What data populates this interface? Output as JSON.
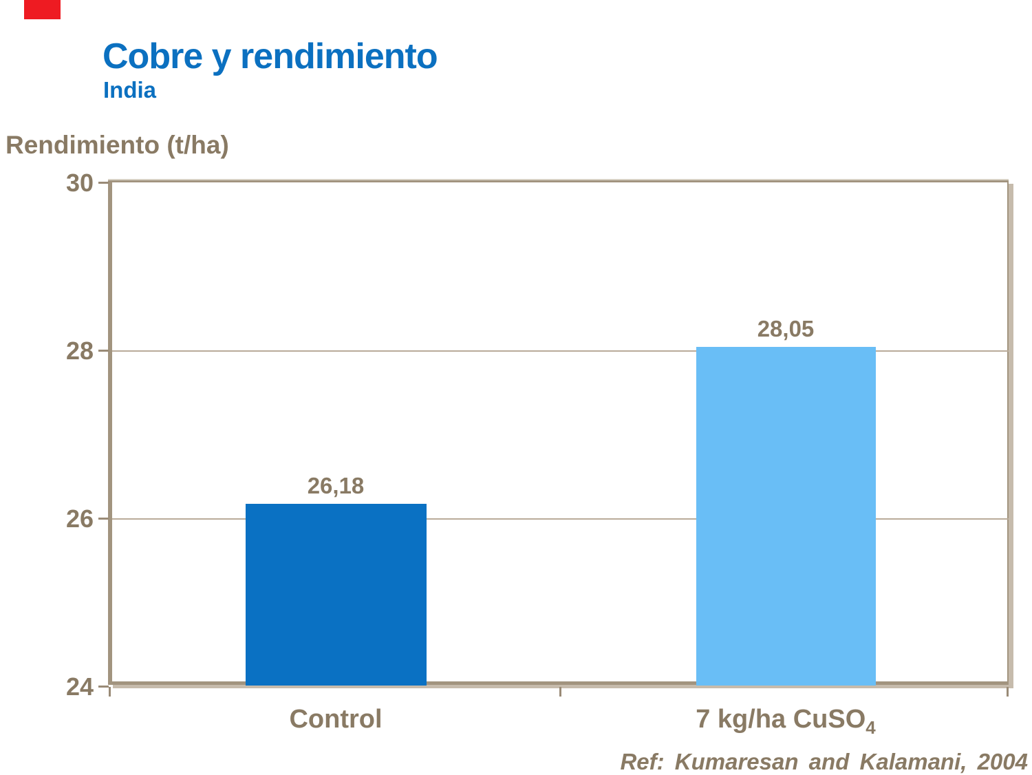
{
  "slide": {
    "title": "Cobre y rendimiento",
    "subtitle": "India",
    "title_color": "#0b70c0",
    "accent_bar_color": "#ee1b22",
    "text_color": "#897a64",
    "reference": "Ref: Kumaresan and Kalamani, 2004"
  },
  "chart_data": {
    "type": "bar",
    "title": "Cobre y rendimiento (India)",
    "ylabel": "Rendimiento (t/ha)",
    "xlabel": "",
    "categories": [
      "Control",
      "7 kg/ha CuSO4"
    ],
    "category_display": {
      "first": "Control",
      "second_main": "7 kg/ha CuSO",
      "second_sub": "4"
    },
    "values": [
      26.18,
      28.05
    ],
    "value_labels": [
      "26,18",
      "28,05"
    ],
    "bar_colors": [
      "#0a71c3",
      "#69bef6"
    ],
    "ylim": [
      24,
      30
    ],
    "yticks": [
      30,
      28,
      26,
      24
    ],
    "ytick_labels": [
      "30",
      "28",
      "26",
      "24"
    ],
    "gridlines_at": [
      28,
      26
    ],
    "legend": "none",
    "grid": "horizontal",
    "annotation": "Ref: Kumaresan and Kalamani, 2004"
  }
}
